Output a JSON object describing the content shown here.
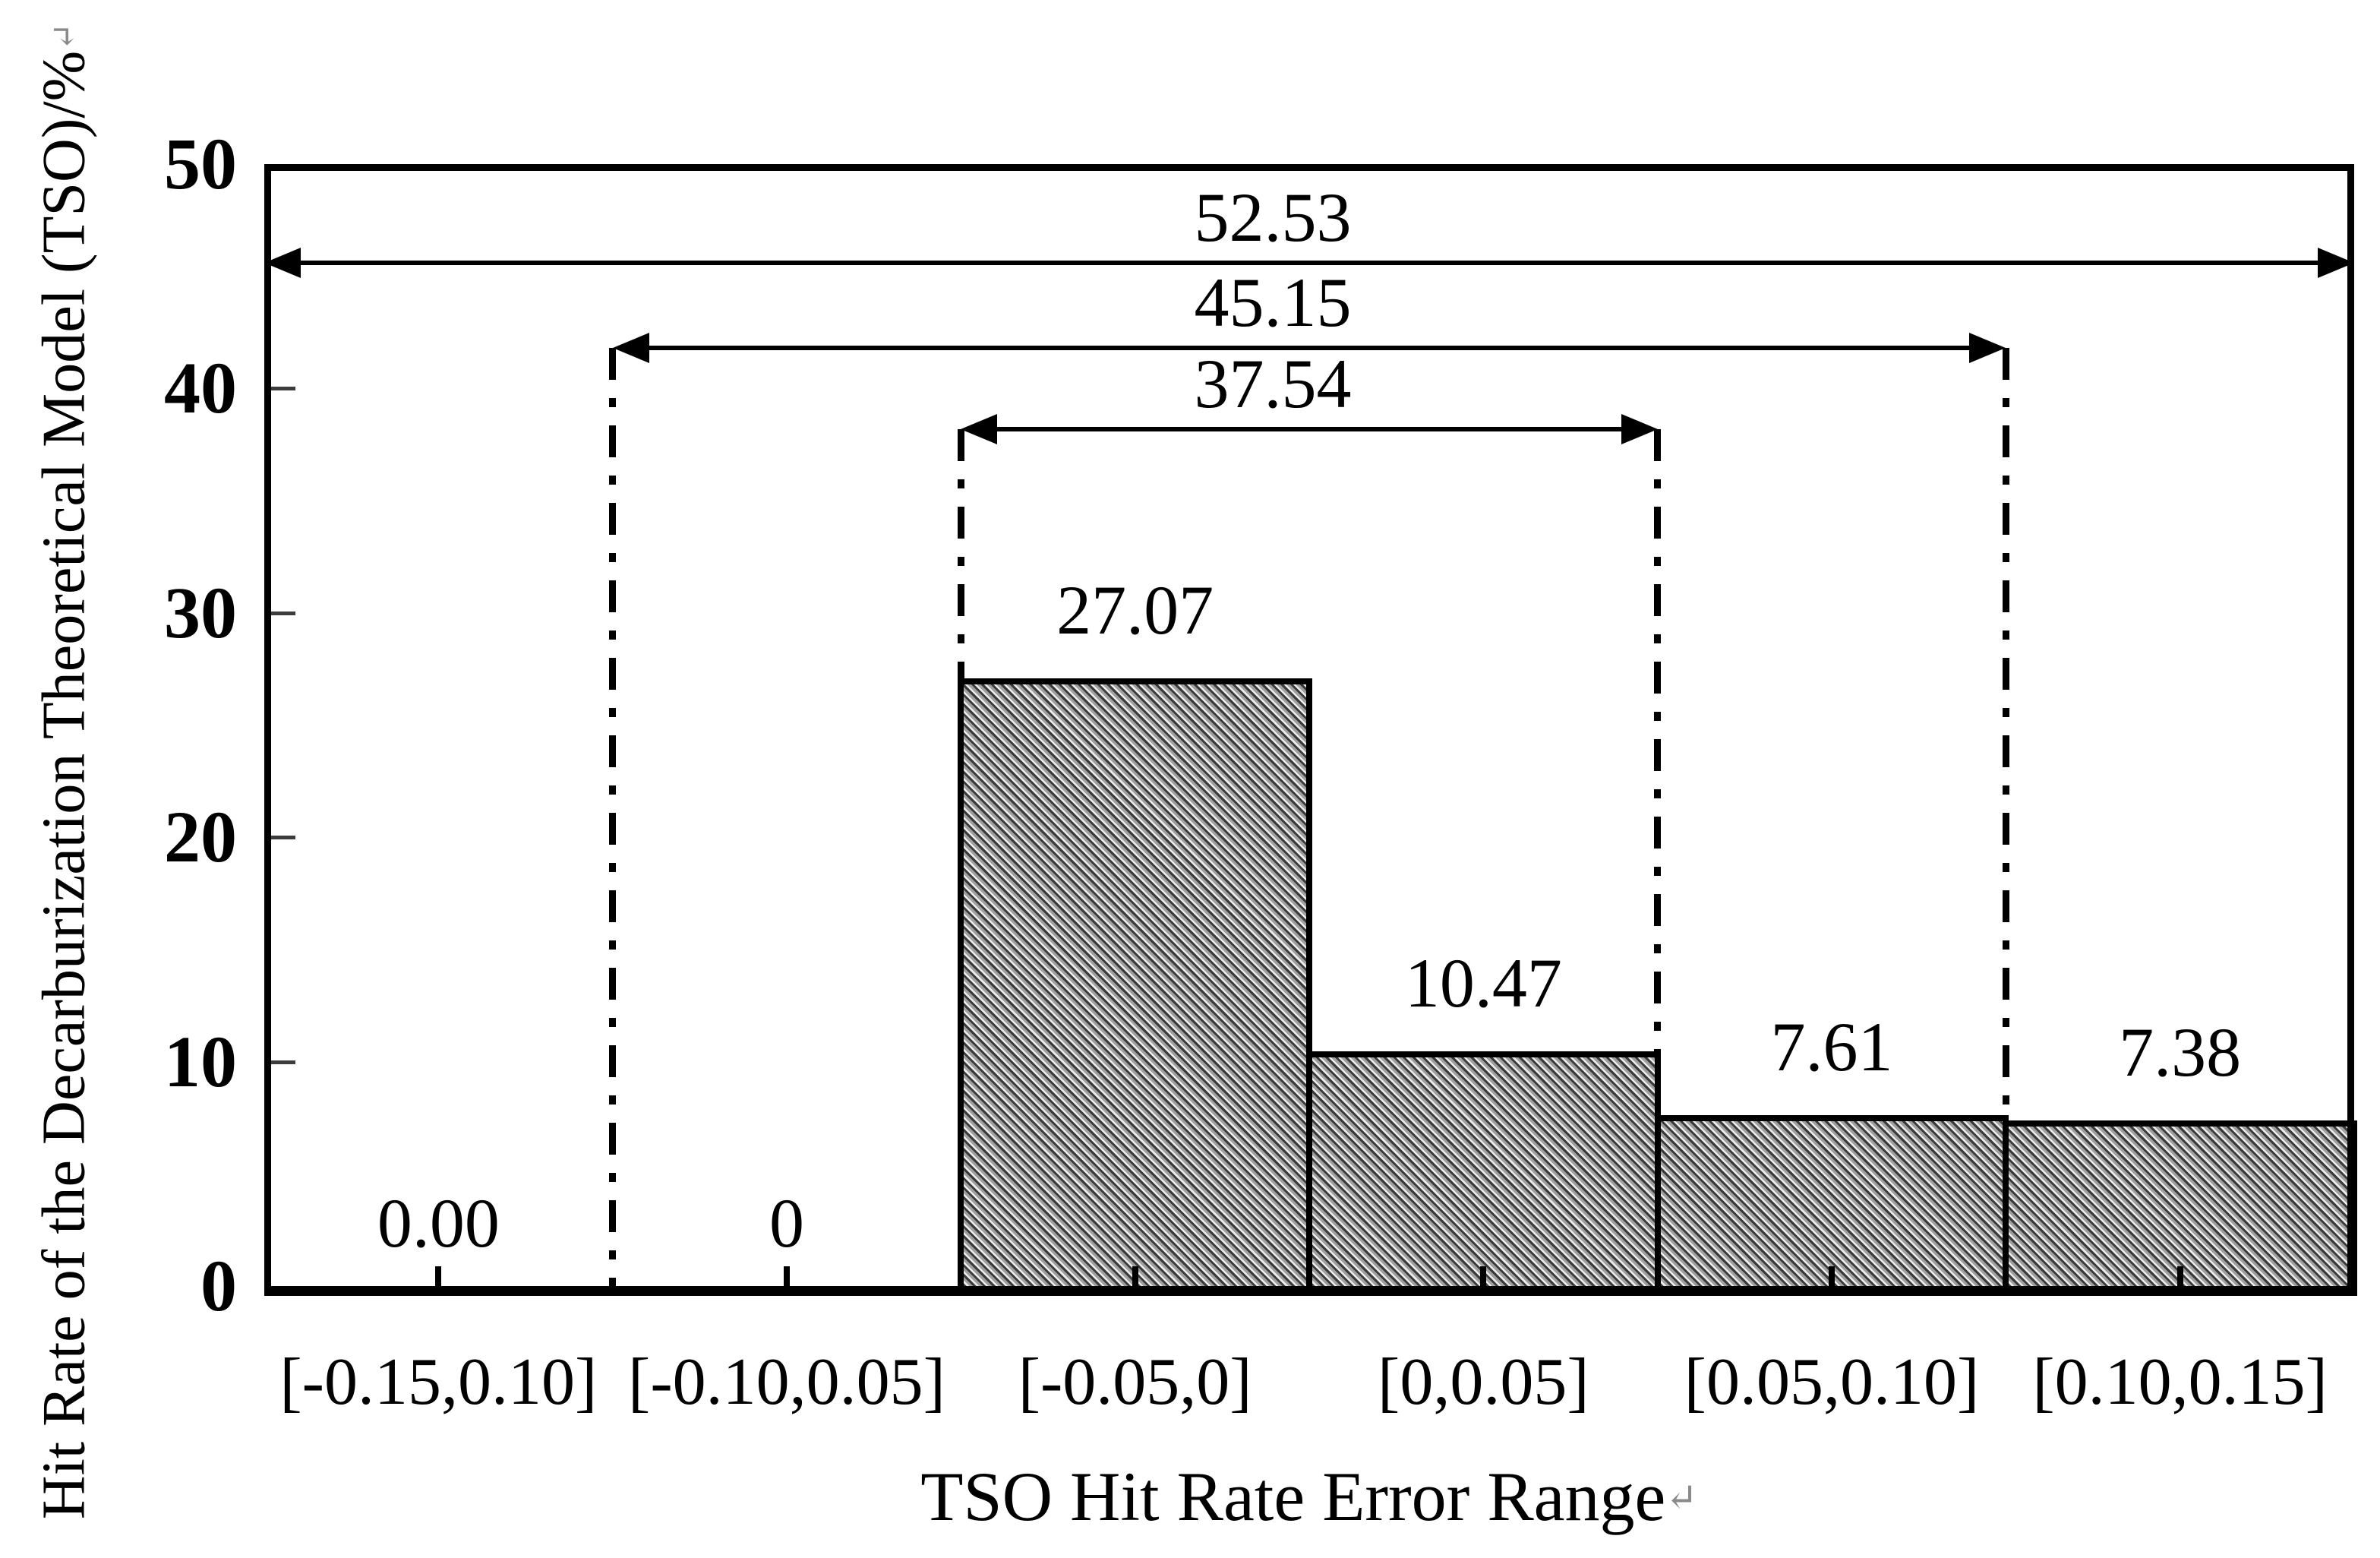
{
  "figure": {
    "background": "#ffffff",
    "ink_color": "#000000",
    "bar_fill_base": "#9f9f9f",
    "bar_hatch_color": "#3a3a3a",
    "bar_hatch_style": "diagonal-45deg",
    "return_mark_color": "#8a8a8a"
  },
  "chart_data": {
    "type": "bar",
    "title": "",
    "xlabel": "TSO Hit Rate Error Range",
    "xlabel_return_mark": "↵",
    "ylabel": "Hit Rate of the Decarburization Theoretical Model (TSO)/%",
    "ylabel_return_mark": "↵",
    "categories": [
      "[-0.15,0.10]",
      "[-0.10,0.05]",
      "[-0.05,0]",
      "[0,0.05]",
      "[0.05,0.10]",
      "[0.10,0.15]"
    ],
    "values": [
      0.0,
      0,
      27.07,
      10.47,
      7.61,
      7.38
    ],
    "value_labels": [
      "0.00",
      "0",
      "27.07",
      "10.47",
      "7.61",
      "7.38"
    ],
    "ylim": [
      0,
      50
    ],
    "yticks": [
      0,
      10,
      20,
      30,
      40,
      50
    ],
    "y_tick_labels": [
      "0",
      "10",
      "20",
      "30",
      "40",
      "50"
    ],
    "grid": false,
    "legend": "none",
    "annotations": {
      "cumulative_arrows": [
        {
          "label": "52.53",
          "from_boundary": 0,
          "to_boundary": 6,
          "y_value": 45.6
        },
        {
          "label": "45.15",
          "from_boundary": 1,
          "to_boundary": 5,
          "y_value": 41.8
        },
        {
          "label": "37.54",
          "from_boundary": 2,
          "to_boundary": 4,
          "y_value": 38.2
        }
      ],
      "dashdot_guides": [
        {
          "boundary": 1,
          "top_value": 41.8,
          "bottom_value": 0
        },
        {
          "boundary": 2,
          "top_value": 38.2,
          "bottom_value": 27.07
        },
        {
          "boundary": 4,
          "top_value": 38.2,
          "bottom_value": 10.47
        },
        {
          "boundary": 5,
          "top_value": 41.8,
          "bottom_value": 7.61
        }
      ]
    }
  }
}
